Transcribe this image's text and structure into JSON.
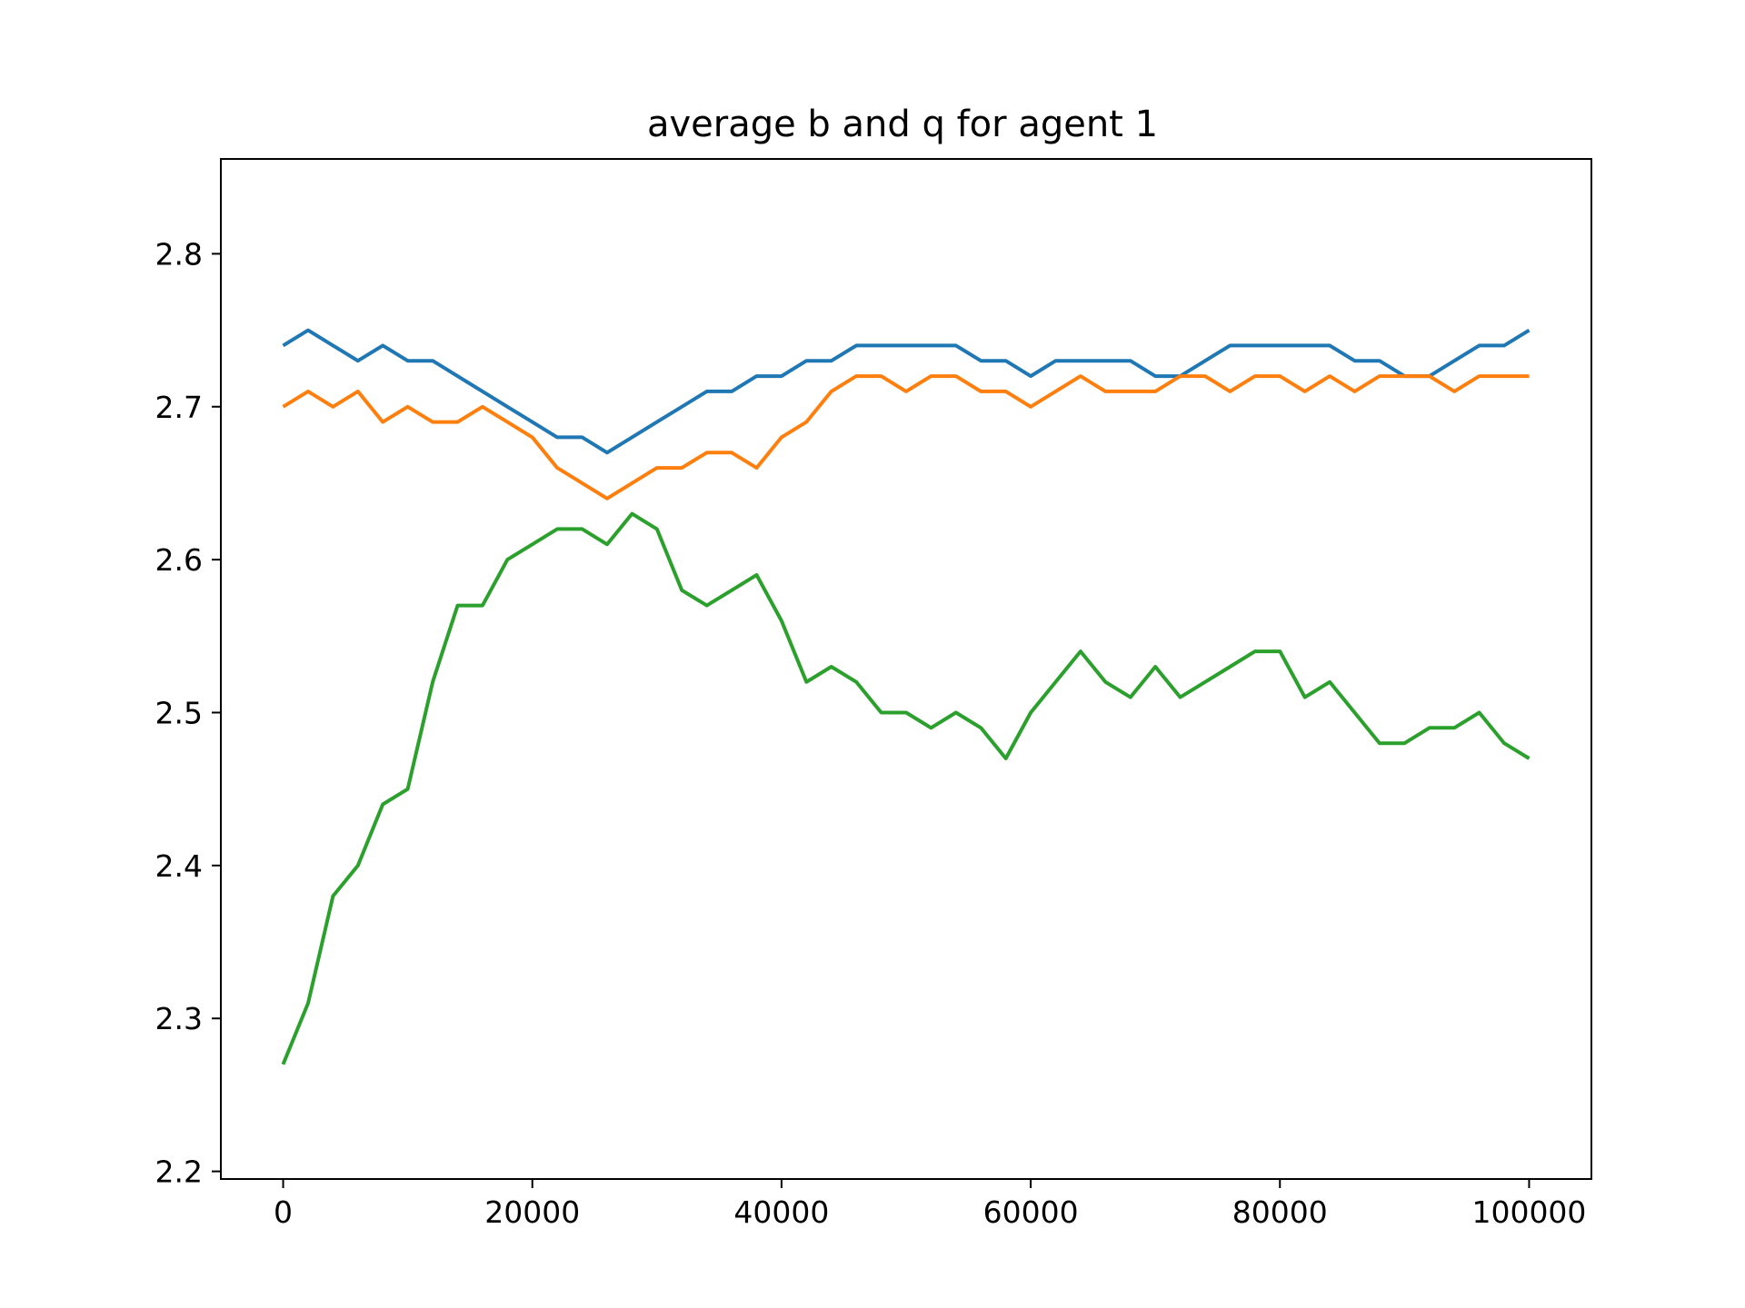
{
  "chart_data": {
    "type": "line",
    "title": "average b and q for agent 1",
    "xlabel": "",
    "ylabel": "",
    "xlim": [
      -5000,
      105000
    ],
    "ylim": [
      2.195,
      2.862
    ],
    "x_ticks": [
      0,
      20000,
      40000,
      60000,
      80000,
      100000
    ],
    "x_tick_labels": [
      "0",
      "20000",
      "40000",
      "60000",
      "80000",
      "100000"
    ],
    "y_ticks": [
      2.2,
      2.3,
      2.4,
      2.5,
      2.6,
      2.7,
      2.8
    ],
    "y_tick_labels": [
      "2.2",
      "2.3",
      "2.4",
      "2.5",
      "2.6",
      "2.7",
      "2.8"
    ],
    "grid": false,
    "legend": "none",
    "series": [
      {
        "color": "#1f77b4",
        "x": [
          0,
          2000,
          4000,
          6000,
          8000,
          10000,
          12000,
          14000,
          16000,
          18000,
          20000,
          22000,
          24000,
          26000,
          28000,
          30000,
          32000,
          34000,
          36000,
          38000,
          40000,
          42000,
          44000,
          46000,
          48000,
          50000,
          52000,
          54000,
          56000,
          58000,
          60000,
          62000,
          64000,
          66000,
          68000,
          70000,
          72000,
          74000,
          76000,
          78000,
          80000,
          82000,
          84000,
          86000,
          88000,
          90000,
          92000,
          94000,
          96000,
          98000,
          100000
        ],
        "y": [
          2.74,
          2.75,
          2.74,
          2.73,
          2.74,
          2.73,
          2.73,
          2.72,
          2.71,
          2.7,
          2.69,
          2.68,
          2.68,
          2.67,
          2.68,
          2.69,
          2.7,
          2.71,
          2.71,
          2.72,
          2.72,
          2.73,
          2.73,
          2.74,
          2.74,
          2.74,
          2.74,
          2.74,
          2.73,
          2.73,
          2.72,
          2.73,
          2.73,
          2.73,
          2.73,
          2.72,
          2.72,
          2.73,
          2.74,
          2.74,
          2.74,
          2.74,
          2.74,
          2.73,
          2.73,
          2.72,
          2.72,
          2.73,
          2.74,
          2.74,
          2.75
        ]
      },
      {
        "color": "#ff7f0e",
        "x": [
          0,
          2000,
          4000,
          6000,
          8000,
          10000,
          12000,
          14000,
          16000,
          18000,
          20000,
          22000,
          24000,
          26000,
          28000,
          30000,
          32000,
          34000,
          36000,
          38000,
          40000,
          42000,
          44000,
          46000,
          48000,
          50000,
          52000,
          54000,
          56000,
          58000,
          60000,
          62000,
          64000,
          66000,
          68000,
          70000,
          72000,
          74000,
          76000,
          78000,
          80000,
          82000,
          84000,
          86000,
          88000,
          90000,
          92000,
          94000,
          96000,
          98000,
          100000
        ],
        "y": [
          2.7,
          2.71,
          2.7,
          2.71,
          2.69,
          2.7,
          2.69,
          2.69,
          2.7,
          2.69,
          2.68,
          2.66,
          2.65,
          2.64,
          2.65,
          2.66,
          2.66,
          2.67,
          2.67,
          2.66,
          2.68,
          2.69,
          2.71,
          2.72,
          2.72,
          2.71,
          2.72,
          2.72,
          2.71,
          2.71,
          2.7,
          2.71,
          2.72,
          2.71,
          2.71,
          2.71,
          2.72,
          2.72,
          2.71,
          2.72,
          2.72,
          2.71,
          2.72,
          2.71,
          2.72,
          2.72,
          2.72,
          2.71,
          2.72,
          2.72,
          2.72
        ]
      },
      {
        "color": "#2ca02c",
        "x": [
          0,
          2000,
          4000,
          6000,
          8000,
          10000,
          12000,
          14000,
          16000,
          18000,
          20000,
          22000,
          24000,
          26000,
          28000,
          30000,
          32000,
          34000,
          36000,
          38000,
          40000,
          42000,
          44000,
          46000,
          48000,
          50000,
          52000,
          54000,
          56000,
          58000,
          60000,
          62000,
          64000,
          66000,
          68000,
          70000,
          72000,
          74000,
          76000,
          78000,
          80000,
          82000,
          84000,
          86000,
          88000,
          90000,
          92000,
          94000,
          96000,
          98000,
          100000
        ],
        "y": [
          2.27,
          2.31,
          2.38,
          2.4,
          2.44,
          2.45,
          2.52,
          2.57,
          2.57,
          2.6,
          2.61,
          2.62,
          2.62,
          2.61,
          2.63,
          2.62,
          2.58,
          2.57,
          2.58,
          2.59,
          2.56,
          2.52,
          2.53,
          2.52,
          2.5,
          2.5,
          2.49,
          2.5,
          2.49,
          2.47,
          2.5,
          2.52,
          2.54,
          2.52,
          2.51,
          2.53,
          2.51,
          2.52,
          2.53,
          2.54,
          2.54,
          2.51,
          2.52,
          2.5,
          2.48,
          2.48,
          2.49,
          2.49,
          2.5,
          2.48,
          2.47
        ]
      }
    ]
  }
}
